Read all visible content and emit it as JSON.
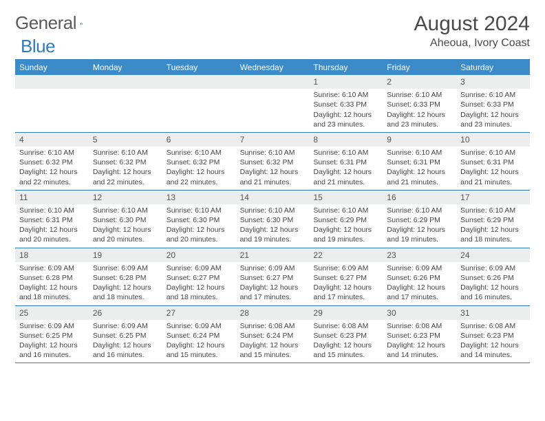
{
  "logo": {
    "text1": "General",
    "text2": "Blue"
  },
  "title": "August 2024",
  "location": "Aheoua, Ivory Coast",
  "colors": {
    "header_bg": "#3b8bc9",
    "border": "#2f7bbf",
    "date_bg": "#eceded",
    "logo_gray": "#5a5a5a",
    "logo_blue": "#2f7bbf"
  },
  "dayNames": [
    "Sunday",
    "Monday",
    "Tuesday",
    "Wednesday",
    "Thursday",
    "Friday",
    "Saturday"
  ],
  "weeks": [
    [
      {
        "date": "",
        "lines": []
      },
      {
        "date": "",
        "lines": []
      },
      {
        "date": "",
        "lines": []
      },
      {
        "date": "",
        "lines": []
      },
      {
        "date": "1",
        "lines": [
          "Sunrise: 6:10 AM",
          "Sunset: 6:33 PM",
          "Daylight: 12 hours and 23 minutes."
        ]
      },
      {
        "date": "2",
        "lines": [
          "Sunrise: 6:10 AM",
          "Sunset: 6:33 PM",
          "Daylight: 12 hours and 23 minutes."
        ]
      },
      {
        "date": "3",
        "lines": [
          "Sunrise: 6:10 AM",
          "Sunset: 6:33 PM",
          "Daylight: 12 hours and 23 minutes."
        ]
      }
    ],
    [
      {
        "date": "4",
        "lines": [
          "Sunrise: 6:10 AM",
          "Sunset: 6:32 PM",
          "Daylight: 12 hours and 22 minutes."
        ]
      },
      {
        "date": "5",
        "lines": [
          "Sunrise: 6:10 AM",
          "Sunset: 6:32 PM",
          "Daylight: 12 hours and 22 minutes."
        ]
      },
      {
        "date": "6",
        "lines": [
          "Sunrise: 6:10 AM",
          "Sunset: 6:32 PM",
          "Daylight: 12 hours and 22 minutes."
        ]
      },
      {
        "date": "7",
        "lines": [
          "Sunrise: 6:10 AM",
          "Sunset: 6:32 PM",
          "Daylight: 12 hours and 21 minutes."
        ]
      },
      {
        "date": "8",
        "lines": [
          "Sunrise: 6:10 AM",
          "Sunset: 6:31 PM",
          "Daylight: 12 hours and 21 minutes."
        ]
      },
      {
        "date": "9",
        "lines": [
          "Sunrise: 6:10 AM",
          "Sunset: 6:31 PM",
          "Daylight: 12 hours and 21 minutes."
        ]
      },
      {
        "date": "10",
        "lines": [
          "Sunrise: 6:10 AM",
          "Sunset: 6:31 PM",
          "Daylight: 12 hours and 21 minutes."
        ]
      }
    ],
    [
      {
        "date": "11",
        "lines": [
          "Sunrise: 6:10 AM",
          "Sunset: 6:31 PM",
          "Daylight: 12 hours and 20 minutes."
        ]
      },
      {
        "date": "12",
        "lines": [
          "Sunrise: 6:10 AM",
          "Sunset: 6:30 PM",
          "Daylight: 12 hours and 20 minutes."
        ]
      },
      {
        "date": "13",
        "lines": [
          "Sunrise: 6:10 AM",
          "Sunset: 6:30 PM",
          "Daylight: 12 hours and 20 minutes."
        ]
      },
      {
        "date": "14",
        "lines": [
          "Sunrise: 6:10 AM",
          "Sunset: 6:30 PM",
          "Daylight: 12 hours and 19 minutes."
        ]
      },
      {
        "date": "15",
        "lines": [
          "Sunrise: 6:10 AM",
          "Sunset: 6:29 PM",
          "Daylight: 12 hours and 19 minutes."
        ]
      },
      {
        "date": "16",
        "lines": [
          "Sunrise: 6:10 AM",
          "Sunset: 6:29 PM",
          "Daylight: 12 hours and 19 minutes."
        ]
      },
      {
        "date": "17",
        "lines": [
          "Sunrise: 6:10 AM",
          "Sunset: 6:29 PM",
          "Daylight: 12 hours and 18 minutes."
        ]
      }
    ],
    [
      {
        "date": "18",
        "lines": [
          "Sunrise: 6:09 AM",
          "Sunset: 6:28 PM",
          "Daylight: 12 hours and 18 minutes."
        ]
      },
      {
        "date": "19",
        "lines": [
          "Sunrise: 6:09 AM",
          "Sunset: 6:28 PM",
          "Daylight: 12 hours and 18 minutes."
        ]
      },
      {
        "date": "20",
        "lines": [
          "Sunrise: 6:09 AM",
          "Sunset: 6:27 PM",
          "Daylight: 12 hours and 18 minutes."
        ]
      },
      {
        "date": "21",
        "lines": [
          "Sunrise: 6:09 AM",
          "Sunset: 6:27 PM",
          "Daylight: 12 hours and 17 minutes."
        ]
      },
      {
        "date": "22",
        "lines": [
          "Sunrise: 6:09 AM",
          "Sunset: 6:27 PM",
          "Daylight: 12 hours and 17 minutes."
        ]
      },
      {
        "date": "23",
        "lines": [
          "Sunrise: 6:09 AM",
          "Sunset: 6:26 PM",
          "Daylight: 12 hours and 17 minutes."
        ]
      },
      {
        "date": "24",
        "lines": [
          "Sunrise: 6:09 AM",
          "Sunset: 6:26 PM",
          "Daylight: 12 hours and 16 minutes."
        ]
      }
    ],
    [
      {
        "date": "25",
        "lines": [
          "Sunrise: 6:09 AM",
          "Sunset: 6:25 PM",
          "Daylight: 12 hours and 16 minutes."
        ]
      },
      {
        "date": "26",
        "lines": [
          "Sunrise: 6:09 AM",
          "Sunset: 6:25 PM",
          "Daylight: 12 hours and 16 minutes."
        ]
      },
      {
        "date": "27",
        "lines": [
          "Sunrise: 6:09 AM",
          "Sunset: 6:24 PM",
          "Daylight: 12 hours and 15 minutes."
        ]
      },
      {
        "date": "28",
        "lines": [
          "Sunrise: 6:08 AM",
          "Sunset: 6:24 PM",
          "Daylight: 12 hours and 15 minutes."
        ]
      },
      {
        "date": "29",
        "lines": [
          "Sunrise: 6:08 AM",
          "Sunset: 6:23 PM",
          "Daylight: 12 hours and 15 minutes."
        ]
      },
      {
        "date": "30",
        "lines": [
          "Sunrise: 6:08 AM",
          "Sunset: 6:23 PM",
          "Daylight: 12 hours and 14 minutes."
        ]
      },
      {
        "date": "31",
        "lines": [
          "Sunrise: 6:08 AM",
          "Sunset: 6:23 PM",
          "Daylight: 12 hours and 14 minutes."
        ]
      }
    ]
  ]
}
